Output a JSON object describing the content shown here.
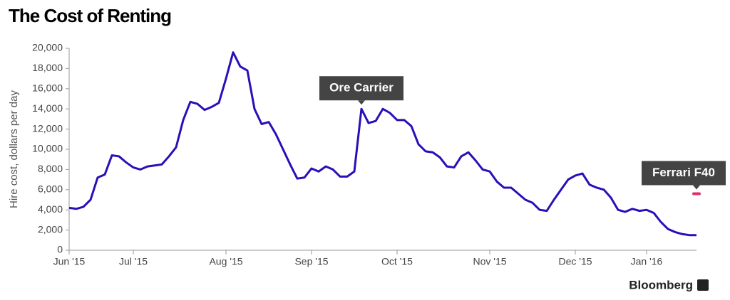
{
  "chart_data": {
    "type": "line",
    "title": "The Cost of Renting",
    "y_label": "Hire cost, dollars per day",
    "source": "Bloomberg",
    "annotations": [
      "Ore Carrier",
      "Ferrari F40"
    ],
    "highlight": {
      "value": 5600,
      "color": "#e0306a"
    },
    "categories": [
      "Jun '15",
      null,
      null,
      null,
      null,
      null,
      null,
      null,
      null,
      "Jul '15",
      null,
      null,
      null,
      null,
      null,
      null,
      null,
      null,
      null,
      null,
      null,
      null,
      "Aug '15",
      null,
      null,
      null,
      null,
      null,
      null,
      null,
      null,
      null,
      null,
      null,
      "Sep '15",
      null,
      null,
      null,
      null,
      null,
      null,
      null,
      null,
      null,
      null,
      null,
      "Oct '15",
      null,
      null,
      null,
      null,
      null,
      null,
      null,
      null,
      null,
      null,
      null,
      null,
      "Nov '15",
      null,
      null,
      null,
      null,
      null,
      null,
      null,
      null,
      null,
      null,
      null,
      "Dec '15",
      null,
      null,
      null,
      null,
      null,
      null,
      null,
      null,
      null,
      "Jan '16",
      null,
      null,
      null,
      null,
      null,
      null,
      null
    ],
    "series": [
      {
        "color": "#2a0fb8",
        "values": [
          4200,
          4100,
          4300,
          5000,
          7200,
          7500,
          9400,
          9300,
          8700,
          8200,
          8000,
          8300,
          8400,
          8500,
          9300,
          10200,
          12900,
          14700,
          14500,
          13900,
          14200,
          14600,
          17000,
          19600,
          18200,
          17800,
          14000,
          12500,
          12700,
          11500,
          10000,
          8500,
          7100,
          7200,
          8100,
          7800,
          8300,
          8000,
          7300,
          7300,
          7800,
          14000,
          12600,
          12800,
          14000,
          13600,
          12900,
          12900,
          12300,
          10500,
          9800,
          9700,
          9200,
          8300,
          8200,
          9300,
          9700,
          8900,
          8000,
          7800,
          6800,
          6200,
          6200,
          5600,
          5000,
          4700,
          4000,
          3900,
          5000,
          6000,
          7000,
          7400,
          7600,
          6500,
          6200,
          6000,
          5200,
          4000,
          3800,
          4100,
          3900,
          4000,
          3700,
          2800,
          2100,
          1800,
          1600,
          1500,
          1500
        ]
      }
    ],
    "ylim": [
      0,
      20000
    ],
    "yticks": [
      0,
      {
        "value": 2000,
        "label": "2,000"
      },
      {
        "value": 4000,
        "label": "4,000"
      },
      {
        "value": 6000,
        "label": "6,000"
      },
      {
        "value": 8000,
        "label": "8,000"
      },
      {
        "value": 10000,
        "label": "10,000"
      },
      {
        "value": 12000,
        "label": "12,000"
      },
      {
        "value": 14000,
        "label": "14,000"
      },
      {
        "value": 16000,
        "label": "16,000"
      },
      {
        "value": 18000,
        "label": "18,000"
      },
      {
        "value": 20000,
        "label": "20,000"
      }
    ]
  }
}
